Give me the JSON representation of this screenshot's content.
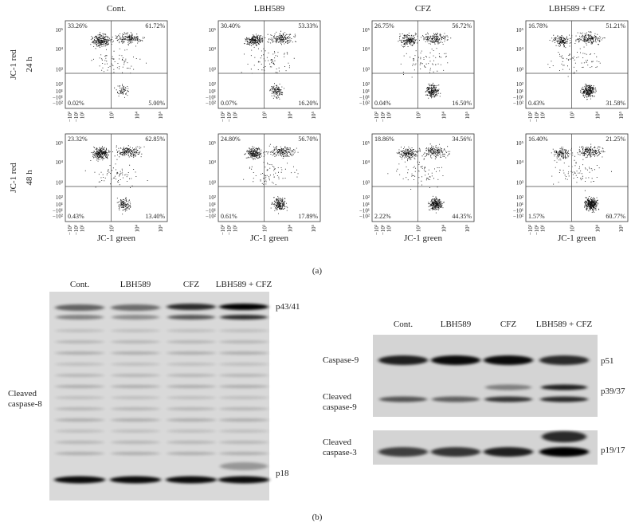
{
  "panel_a": {
    "label": "(a)",
    "x_label": "JC-1 green",
    "y_ticks": [
      "10⁵",
      "10⁴",
      "10³",
      "10²",
      "10¹",
      "−10¹",
      "−10²"
    ],
    "x_ticks": [
      "−10²",
      "−10¹",
      "10¹",
      "10³",
      "10⁴",
      "10⁵"
    ],
    "column_titles": [
      "Cont.",
      "LBH589",
      "CFZ",
      "LBH589 + CFZ"
    ],
    "rows": [
      {
        "marker": "JC-1 red",
        "time": "24 h",
        "plots": [
          {
            "ul": "33.26%",
            "ur": "61.72%",
            "ll": "0.02%",
            "lr": "5.00%"
          },
          {
            "ul": "30.40%",
            "ur": "53.33%",
            "ll": "0.07%",
            "lr": "16.20%"
          },
          {
            "ul": "26.75%",
            "ur": "56.72%",
            "ll": "0.04%",
            "lr": "16.50%"
          },
          {
            "ul": "16.78%",
            "ur": "51.21%",
            "ll": "0.43%",
            "lr": "31.58%"
          }
        ]
      },
      {
        "marker": "JC-1 red",
        "time": "48 h",
        "plots": [
          {
            "ul": "23.32%",
            "ur": "62.85%",
            "ll": "0.43%",
            "lr": "13.40%"
          },
          {
            "ul": "24.80%",
            "ur": "56.70%",
            "ll": "0.61%",
            "lr": "17.89%"
          },
          {
            "ul": "18.86%",
            "ur": "34.56%",
            "ll": "2.22%",
            "lr": "44.35%"
          },
          {
            "ul": "16.40%",
            "ur": "21.25%",
            "ll": "1.57%",
            "lr": "60.77%"
          }
        ]
      }
    ]
  },
  "panel_b": {
    "label": "(b)",
    "left_blot": {
      "lanes": [
        "Cont.",
        "LBH589",
        "CFZ",
        "LBH589 + CFZ"
      ],
      "protein_lines": [
        "Cleaved",
        "caspase-8"
      ],
      "bands": [
        "p43/41",
        "p18"
      ]
    },
    "right_blot": {
      "lanes": [
        "Cont.",
        "LBH589",
        "CFZ",
        "LBH589 + CFZ"
      ],
      "proteins": [
        {
          "lines": [
            "Caspase-9"
          ],
          "band": "p51"
        },
        {
          "lines": [
            "Cleaved",
            "caspase-9"
          ],
          "band": "p39/37"
        },
        {
          "lines": [
            "Cleaved",
            "caspase-3"
          ],
          "band": "p19/17"
        }
      ]
    }
  }
}
